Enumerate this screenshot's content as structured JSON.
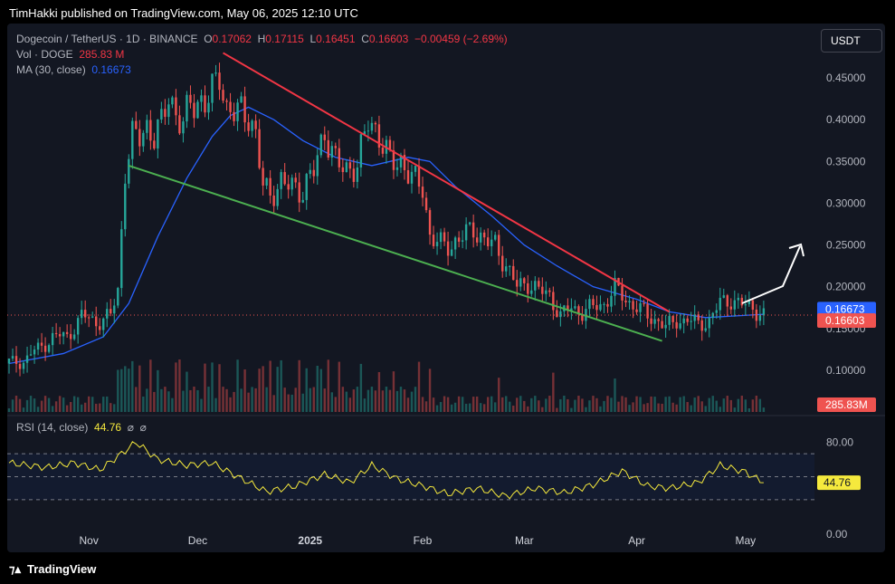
{
  "header": {
    "published_text": "TimHakki published on TradingView.com, May 06, 2025 12:10 UTC"
  },
  "symbol": {
    "title": "Dogecoin / TetherUS · 1D · BINANCE",
    "o_label": "O",
    "o": "0.17062",
    "h_label": "H",
    "h": "0.17115",
    "l_label": "L",
    "l": "0.16451",
    "c_label": "C",
    "c": "0.16603",
    "change": "−0.00459 (−2.69%)"
  },
  "volume_legend": {
    "label": "Vol · DOGE",
    "value": "285.83 M"
  },
  "ma_legend": {
    "label": "MA (30, close)",
    "value": "0.16673"
  },
  "rsi_legend": {
    "label": "RSI (14, close)",
    "value": "44.76",
    "icons": [
      "eye-off",
      "eye-off"
    ]
  },
  "currency": "USDT",
  "footer": {
    "brand": "TradingView"
  },
  "colors": {
    "up": "#26a69a",
    "down": "#ef5350",
    "ma": "#2962ff",
    "rsi": "#f5e93d",
    "resistance": "#f23645",
    "support": "#4caf50",
    "background": "#131722"
  },
  "chart_data": [
    {
      "type": "candlestick",
      "ylim": [
        0.05,
        0.5
      ],
      "y_ticks": [
        "0.45000",
        "0.40000",
        "0.35000",
        "0.30000",
        "0.25000",
        "0.20000",
        "0.15000",
        "0.10000"
      ],
      "x_ticks": [
        "Nov",
        "Dec",
        "2025",
        "Feb",
        "Mar",
        "Apr",
        "May"
      ],
      "last_price_label": "0.16603",
      "ma_label": "0.16673",
      "volume_label": "285.83M",
      "trend_lines": [
        {
          "name": "resistance",
          "points": [
            [
              "2024-12-08",
              0.48
            ],
            [
              "2025-04-10",
              0.17
            ]
          ]
        },
        {
          "name": "support",
          "points": [
            [
              "2024-11-12",
              0.345
            ],
            [
              "2025-04-08",
              0.135
            ]
          ]
        }
      ],
      "series": [
        {
          "name": "price",
          "values": [
            [
              "2024-10-10",
              0.108
            ],
            [
              "2024-10-14",
              0.112
            ],
            [
              "2024-10-18",
              0.125
            ],
            [
              "2024-10-22",
              0.14
            ],
            [
              "2024-10-26",
              0.14
            ],
            [
              "2024-10-30",
              0.165
            ],
            [
              "2024-11-03",
              0.158
            ],
            [
              "2024-11-07",
              0.165
            ],
            [
              "2024-11-09",
              0.195
            ],
            [
              "2024-11-11",
              0.34
            ],
            [
              "2024-11-13",
              0.38
            ],
            [
              "2024-11-15",
              0.38
            ],
            [
              "2024-11-17",
              0.39
            ],
            [
              "2024-11-19",
              0.38
            ],
            [
              "2024-11-21",
              0.395
            ],
            [
              "2024-11-23",
              0.43
            ],
            [
              "2024-11-25",
              0.405
            ],
            [
              "2024-11-27",
              0.395
            ],
            [
              "2024-11-29",
              0.42
            ],
            [
              "2024-12-01",
              0.42
            ],
            [
              "2024-12-03",
              0.42
            ],
            [
              "2024-12-05",
              0.435
            ],
            [
              "2024-12-07",
              0.455
            ],
            [
              "2024-12-09",
              0.41
            ],
            [
              "2024-12-11",
              0.41
            ],
            [
              "2024-12-13",
              0.41
            ],
            [
              "2024-12-15",
              0.405
            ],
            [
              "2024-12-17",
              0.38
            ],
            [
              "2024-12-19",
              0.32
            ],
            [
              "2024-12-21",
              0.31
            ],
            [
              "2024-12-24",
              0.325
            ],
            [
              "2024-12-27",
              0.32
            ],
            [
              "2024-12-30",
              0.315
            ],
            [
              "2025-01-02",
              0.34
            ],
            [
              "2025-01-05",
              0.385
            ],
            [
              "2025-01-08",
              0.35
            ],
            [
              "2025-01-11",
              0.34
            ],
            [
              "2025-01-14",
              0.345
            ],
            [
              "2025-01-17",
              0.4
            ],
            [
              "2025-01-20",
              0.38
            ],
            [
              "2025-01-23",
              0.35
            ],
            [
              "2025-01-26",
              0.35
            ],
            [
              "2025-01-29",
              0.33
            ],
            [
              "2025-02-01",
              0.32
            ],
            [
              "2025-02-03",
              0.26
            ],
            [
              "2025-02-06",
              0.25
            ],
            [
              "2025-02-09",
              0.25
            ],
            [
              "2025-02-12",
              0.26
            ],
            [
              "2025-02-15",
              0.27
            ],
            [
              "2025-02-18",
              0.255
            ],
            [
              "2025-02-21",
              0.25
            ],
            [
              "2025-02-24",
              0.225
            ],
            [
              "2025-02-27",
              0.2
            ],
            [
              "2025-03-02",
              0.205
            ],
            [
              "2025-03-05",
              0.195
            ],
            [
              "2025-03-08",
              0.19
            ],
            [
              "2025-03-11",
              0.165
            ],
            [
              "2025-03-14",
              0.175
            ],
            [
              "2025-03-17",
              0.17
            ],
            [
              "2025-03-20",
              0.175
            ],
            [
              "2025-03-23",
              0.18
            ],
            [
              "2025-03-26",
              0.198
            ],
            [
              "2025-03-29",
              0.185
            ],
            [
              "2025-04-01",
              0.175
            ],
            [
              "2025-04-04",
              0.165
            ],
            [
              "2025-04-07",
              0.16
            ],
            [
              "2025-04-09",
              0.15
            ],
            [
              "2025-04-12",
              0.16
            ],
            [
              "2025-04-15",
              0.16
            ],
            [
              "2025-04-18",
              0.155
            ],
            [
              "2025-04-21",
              0.16
            ],
            [
              "2025-04-24",
              0.18
            ],
            [
              "2025-04-27",
              0.185
            ],
            [
              "2025-04-30",
              0.178
            ],
            [
              "2025-05-03",
              0.175
            ],
            [
              "2025-05-06",
              0.166
            ]
          ]
        },
        {
          "name": "MA (30, close)",
          "values": [
            [
              "2024-10-10",
              0.108
            ],
            [
              "2024-10-25",
              0.12
            ],
            [
              "2024-11-05",
              0.14
            ],
            [
              "2024-11-12",
              0.18
            ],
            [
              "2024-11-20",
              0.26
            ],
            [
              "2024-11-28",
              0.33
            ],
            [
              "2024-12-05",
              0.38
            ],
            [
              "2024-12-10",
              0.405
            ],
            [
              "2024-12-15",
              0.415
            ],
            [
              "2024-12-22",
              0.4
            ],
            [
              "2024-12-30",
              0.375
            ],
            [
              "2025-01-08",
              0.355
            ],
            [
              "2025-01-18",
              0.345
            ],
            [
              "2025-01-28",
              0.355
            ],
            [
              "2025-02-03",
              0.35
            ],
            [
              "2025-02-10",
              0.32
            ],
            [
              "2025-02-20",
              0.285
            ],
            [
              "2025-03-01",
              0.25
            ],
            [
              "2025-03-10",
              0.225
            ],
            [
              "2025-03-20",
              0.2
            ],
            [
              "2025-04-01",
              0.185
            ],
            [
              "2025-04-10",
              0.17
            ],
            [
              "2025-04-20",
              0.163
            ],
            [
              "2025-05-06",
              0.167
            ]
          ]
        }
      ]
    },
    {
      "type": "line",
      "title": "RSI (14, close)",
      "ylim": [
        0,
        100
      ],
      "y_ticks": [
        "80.00",
        "0.00"
      ],
      "bands": [
        30,
        50,
        70
      ],
      "last_value_label": "44.76",
      "series": [
        {
          "name": "RSI",
          "values": [
            [
              "2024-10-10",
              62
            ],
            [
              "2024-10-20",
              58
            ],
            [
              "2024-10-28",
              62
            ],
            [
              "2024-11-04",
              56
            ],
            [
              "2024-11-10",
              70
            ],
            [
              "2024-11-14",
              80
            ],
            [
              "2024-11-20",
              65
            ],
            [
              "2024-11-28",
              60
            ],
            [
              "2024-12-05",
              62
            ],
            [
              "2024-12-12",
              50
            ],
            [
              "2024-12-20",
              37
            ],
            [
              "2024-12-28",
              42
            ],
            [
              "2025-01-05",
              52
            ],
            [
              "2025-01-12",
              45
            ],
            [
              "2025-01-18",
              60
            ],
            [
              "2025-01-25",
              48
            ],
            [
              "2025-02-01",
              42
            ],
            [
              "2025-02-08",
              35
            ],
            [
              "2025-02-16",
              40
            ],
            [
              "2025-02-24",
              33
            ],
            [
              "2025-03-04",
              40
            ],
            [
              "2025-03-12",
              36
            ],
            [
              "2025-03-20",
              43
            ],
            [
              "2025-03-28",
              55
            ],
            [
              "2025-04-04",
              42
            ],
            [
              "2025-04-10",
              40
            ],
            [
              "2025-04-18",
              45
            ],
            [
              "2025-04-24",
              60
            ],
            [
              "2025-05-01",
              54
            ],
            [
              "2025-05-06",
              44.76
            ]
          ]
        }
      ]
    }
  ]
}
